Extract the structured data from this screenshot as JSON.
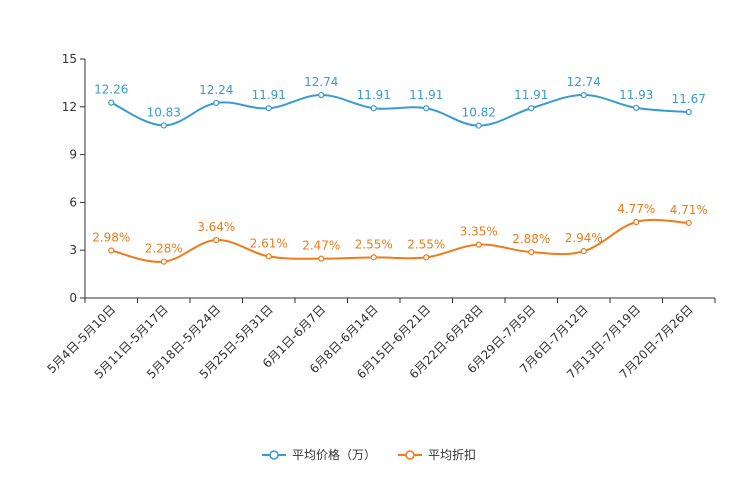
{
  "chart_data": {
    "type": "line",
    "title": "",
    "xlabel": "",
    "ylabel": "",
    "ylim": [
      0,
      15
    ],
    "y_ticks": [
      "0",
      "3",
      "6",
      "9",
      "12",
      "15"
    ],
    "grid": false,
    "legend_position": "bottom-center",
    "categories": [
      "5月4日-5月10日",
      "5月11日-5月17日",
      "5月18日-5月24日",
      "5月25日-5月31日",
      "6月1日-6月7日",
      "6月8日-6月14日",
      "6月15日-6月21日",
      "6月22日-6月28日",
      "6月29日-7月5日",
      "7月6日-7月12日",
      "7月13日-7月19日",
      "7月20日-7月26日"
    ],
    "series": [
      {
        "name": "平均价格（万）",
        "color": "#3a9bd0",
        "values": [
          12.26,
          10.83,
          12.24,
          11.91,
          12.74,
          11.91,
          11.91,
          10.82,
          11.91,
          12.74,
          11.93,
          11.67
        ],
        "labels": [
          "12.26",
          "10.83",
          "12.24",
          "11.91",
          "12.74",
          "11.91",
          "11.91",
          "10.82",
          "11.91",
          "12.74",
          "11.93",
          "11.67"
        ]
      },
      {
        "name": "平均折扣",
        "color": "#f07b1a",
        "values": [
          2.98,
          2.28,
          3.64,
          2.61,
          2.47,
          2.55,
          2.55,
          3.35,
          2.88,
          2.94,
          4.77,
          4.71
        ],
        "labels": [
          "2.98%",
          "2.28%",
          "3.64%",
          "2.61%",
          "2.47%",
          "2.55%",
          "2.55%",
          "3.35%",
          "2.88%",
          "2.94%",
          "4.77%",
          "4.71%"
        ]
      }
    ]
  }
}
